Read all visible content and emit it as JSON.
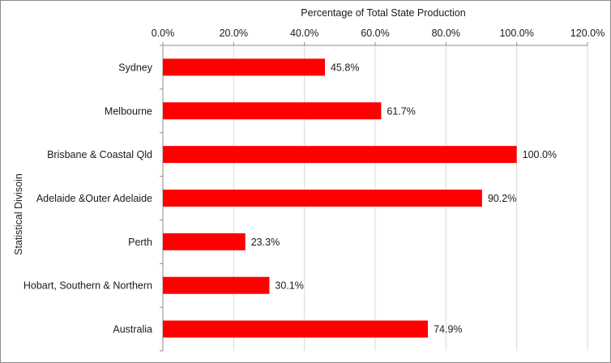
{
  "chart_data": {
    "type": "bar",
    "orientation": "horizontal",
    "title": "Percentage of Total State Production",
    "xlabel": "Percentage of Total State Production",
    "ylabel": "Statistical Divisoin",
    "categories": [
      "Sydney",
      "Melbourne",
      "Brisbane & Coastal Qld",
      "Adelaide &Outer Adelaide",
      "Perth",
      "Hobart, Southern & Northern",
      "Australia"
    ],
    "values": [
      45.8,
      61.7,
      100.0,
      90.2,
      23.3,
      30.1,
      74.9
    ],
    "data_labels": [
      "45.8%",
      "61.7%",
      "100.0%",
      "90.2%",
      "23.3%",
      "30.1%",
      "74.9%"
    ],
    "xlim": [
      0,
      120
    ],
    "x_ticks": [
      0,
      20,
      40,
      60,
      80,
      100,
      120
    ],
    "x_tick_labels": [
      "0.0%",
      "20.0%",
      "40.0%",
      "60.0%",
      "80.0%",
      "100.0%",
      "120.0%"
    ],
    "x_axis_position": "top",
    "grid": true,
    "legend": "none",
    "bar_color": "#ff0000",
    "grid_color": "#d9d9d9"
  }
}
